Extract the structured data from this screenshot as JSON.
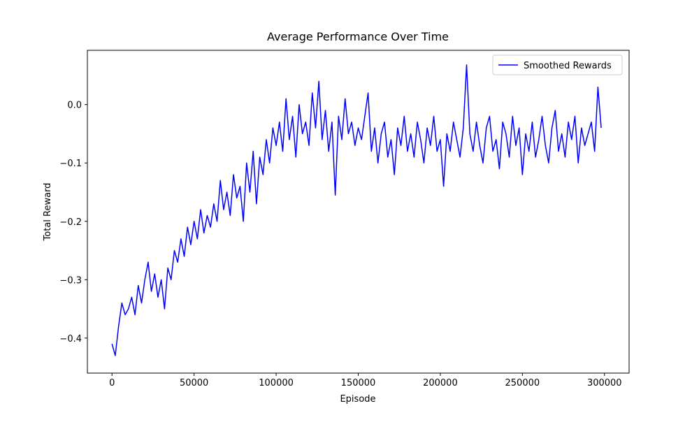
{
  "chart_data": {
    "type": "line",
    "title": "Average Performance Over Time",
    "xlabel": "Episode",
    "ylabel": "Total Reward",
    "x": [
      0,
      2000,
      4000,
      6000,
      8000,
      10000,
      12000,
      14000,
      16000,
      18000,
      20000,
      22000,
      24000,
      26000,
      28000,
      30000,
      32000,
      34000,
      36000,
      38000,
      40000,
      42000,
      44000,
      46000,
      48000,
      50000,
      52000,
      54000,
      56000,
      58000,
      60000,
      62000,
      64000,
      66000,
      68000,
      70000,
      72000,
      74000,
      76000,
      78000,
      80000,
      82000,
      84000,
      86000,
      88000,
      90000,
      92000,
      94000,
      96000,
      98000,
      100000,
      102000,
      104000,
      106000,
      108000,
      110000,
      112000,
      114000,
      116000,
      118000,
      120000,
      122000,
      124000,
      126000,
      128000,
      130000,
      132000,
      134000,
      136000,
      138000,
      140000,
      142000,
      144000,
      146000,
      148000,
      150000,
      152000,
      154000,
      156000,
      158000,
      160000,
      162000,
      164000,
      166000,
      168000,
      170000,
      172000,
      174000,
      176000,
      178000,
      180000,
      182000,
      184000,
      186000,
      188000,
      190000,
      192000,
      194000,
      196000,
      198000,
      200000,
      202000,
      204000,
      206000,
      208000,
      210000,
      212000,
      214000,
      216000,
      218000,
      220000,
      222000,
      224000,
      226000,
      228000,
      230000,
      232000,
      234000,
      236000,
      238000,
      240000,
      242000,
      244000,
      246000,
      248000,
      250000,
      252000,
      254000,
      256000,
      258000,
      260000,
      262000,
      264000,
      266000,
      268000,
      270000,
      272000,
      274000,
      276000,
      278000,
      280000,
      282000,
      284000,
      286000,
      288000,
      290000,
      292000,
      294000,
      296000,
      298000
    ],
    "series": [
      {
        "name": "Smoothed Rewards",
        "color": "#0000ff",
        "values": [
          -0.41,
          -0.43,
          -0.38,
          -0.34,
          -0.36,
          -0.35,
          -0.33,
          -0.36,
          -0.31,
          -0.34,
          -0.3,
          -0.27,
          -0.32,
          -0.29,
          -0.33,
          -0.3,
          -0.35,
          -0.28,
          -0.3,
          -0.25,
          -0.27,
          -0.23,
          -0.26,
          -0.21,
          -0.24,
          -0.2,
          -0.23,
          -0.18,
          -0.22,
          -0.19,
          -0.21,
          -0.17,
          -0.2,
          -0.13,
          -0.18,
          -0.15,
          -0.19,
          -0.12,
          -0.16,
          -0.14,
          -0.2,
          -0.1,
          -0.15,
          -0.08,
          -0.17,
          -0.09,
          -0.12,
          -0.06,
          -0.1,
          -0.04,
          -0.07,
          -0.03,
          -0.08,
          0.01,
          -0.06,
          -0.02,
          -0.09,
          0.0,
          -0.05,
          -0.03,
          -0.07,
          0.02,
          -0.04,
          0.04,
          -0.06,
          -0.01,
          -0.08,
          -0.03,
          -0.155,
          -0.02,
          -0.06,
          0.01,
          -0.05,
          -0.03,
          -0.07,
          -0.04,
          -0.06,
          -0.02,
          0.02,
          -0.08,
          -0.04,
          -0.1,
          -0.05,
          -0.03,
          -0.09,
          -0.06,
          -0.12,
          -0.04,
          -0.07,
          -0.02,
          -0.08,
          -0.05,
          -0.09,
          -0.03,
          -0.06,
          -0.1,
          -0.04,
          -0.07,
          -0.02,
          -0.08,
          -0.06,
          -0.14,
          -0.05,
          -0.08,
          -0.03,
          -0.06,
          -0.09,
          -0.04,
          0.068,
          -0.05,
          -0.08,
          -0.03,
          -0.07,
          -0.1,
          -0.04,
          -0.02,
          -0.08,
          -0.06,
          -0.11,
          -0.03,
          -0.05,
          -0.09,
          -0.02,
          -0.07,
          -0.04,
          -0.12,
          -0.05,
          -0.08,
          -0.03,
          -0.09,
          -0.06,
          -0.02,
          -0.07,
          -0.1,
          -0.04,
          -0.01,
          -0.08,
          -0.05,
          -0.09,
          -0.03,
          -0.06,
          -0.02,
          -0.1,
          -0.04,
          -0.07,
          -0.05,
          -0.03,
          -0.08,
          0.03,
          -0.04
        ]
      }
    ],
    "xlim": [
      -15000,
      315000
    ],
    "xticks": [
      0,
      50000,
      100000,
      150000,
      200000,
      250000,
      300000
    ],
    "ylim": [
      -0.46,
      0.093
    ],
    "yticks": [
      {
        "value": -0.4,
        "label": "−0.4"
      },
      {
        "value": -0.3,
        "label": "−0.3"
      },
      {
        "value": -0.2,
        "label": "−0.2"
      },
      {
        "value": -0.1,
        "label": "−0.1"
      },
      {
        "value": 0,
        "label": "0.0"
      }
    ],
    "legend": "upper right",
    "grid": false
  }
}
